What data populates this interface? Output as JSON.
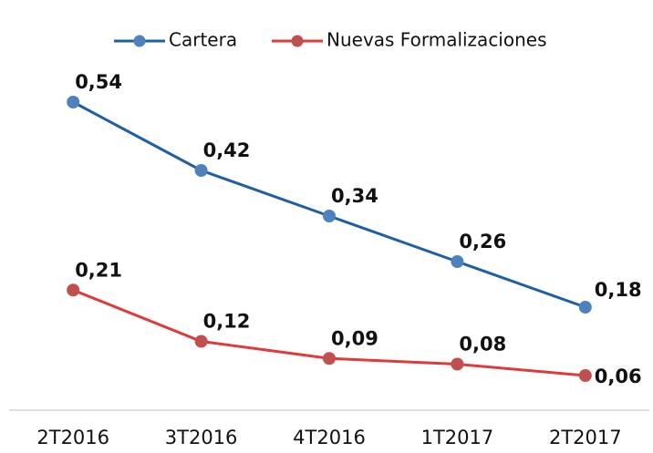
{
  "chart_data": {
    "type": "line",
    "categories": [
      "2T2016",
      "3T2016",
      "4T2016",
      "1T2017",
      "2T2017"
    ],
    "series": [
      {
        "name": "Cartera",
        "color": "#1f5fa6",
        "marker_color": "#4f81bd",
        "values": [
          0.54,
          0.42,
          0.34,
          0.26,
          0.18
        ],
        "value_labels": [
          "0,54",
          "0,42",
          "0,34",
          "0,26",
          "0,18"
        ]
      },
      {
        "name": "Nuevas Formalizaciones",
        "color": "#e03a3a",
        "marker_color": "#c0504d",
        "values": [
          0.21,
          0.12,
          0.09,
          0.08,
          0.06
        ],
        "value_labels": [
          "0,21",
          "0,12",
          "0,09",
          "0,08",
          "0,06"
        ]
      }
    ],
    "ylim": [
      0,
      0.6
    ],
    "legend": "top",
    "grid": false
  }
}
